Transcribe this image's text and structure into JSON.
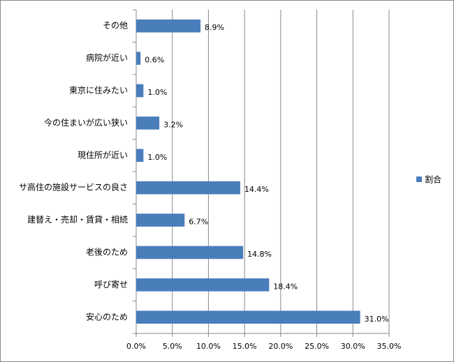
{
  "chart_data": {
    "type": "bar",
    "orientation": "horizontal",
    "categories": [
      "その他",
      "病院が近い",
      "東京に住みたい",
      "今の住まいが広い狭い",
      "現住所が近い",
      "サ高住の施設サービスの良さ",
      "建替え・売却・賃貸・相続",
      "老後のため",
      "呼び寄せ",
      "安心のため"
    ],
    "series": [
      {
        "name": "割合",
        "color": "#4a7ebb",
        "values": [
          8.9,
          0.6,
          1.0,
          3.2,
          1.0,
          14.4,
          6.7,
          14.8,
          18.4,
          31.0
        ],
        "value_labels": [
          "8.9%",
          "0.6%",
          "1.0%",
          "3.2%",
          "1.0%",
          "14.4%",
          "6.7%",
          "14.8%",
          "18.4%",
          "31.0%"
        ]
      }
    ],
    "xlim": [
      0,
      35
    ],
    "xticks": [
      {
        "value": 0,
        "label": "0.0%"
      },
      {
        "value": 5,
        "label": "5.0%"
      },
      {
        "value": 10,
        "label": "10.0%"
      },
      {
        "value": 15,
        "label": "15.0%"
      },
      {
        "value": 20,
        "label": "20.0%"
      },
      {
        "value": 25,
        "label": "25.0%"
      },
      {
        "value": 30,
        "label": "30.0%"
      },
      {
        "value": 35,
        "label": "35.0%"
      }
    ],
    "grid": true,
    "legend": "right"
  }
}
